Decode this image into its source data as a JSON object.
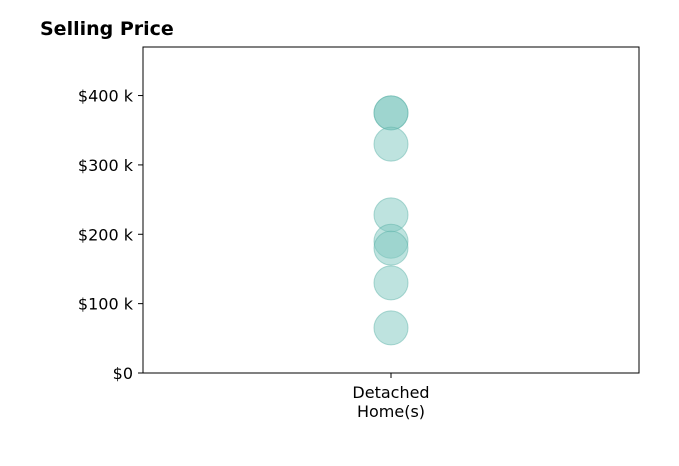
{
  "chart_data": {
    "type": "scatter",
    "title": "Selling Price",
    "xlabel": "",
    "ylabel": "",
    "categories": [
      "Detached\nHome(s)"
    ],
    "series": [
      {
        "category_index": 0,
        "values": [
          375000,
          375000,
          330000,
          228000,
          190000,
          180000,
          130000,
          65000
        ]
      }
    ],
    "ylim": [
      0,
      470000
    ],
    "yticks": [
      {
        "value": 0,
        "label": "$0"
      },
      {
        "value": 100000,
        "label": "$100 k"
      },
      {
        "value": 200000,
        "label": "$200 k"
      },
      {
        "value": 300000,
        "label": "$300 k"
      },
      {
        "value": 400000,
        "label": "$400 k"
      }
    ],
    "grid": false,
    "point_color": "#7ec8c0",
    "point_stroke": "#5fb3aa"
  }
}
